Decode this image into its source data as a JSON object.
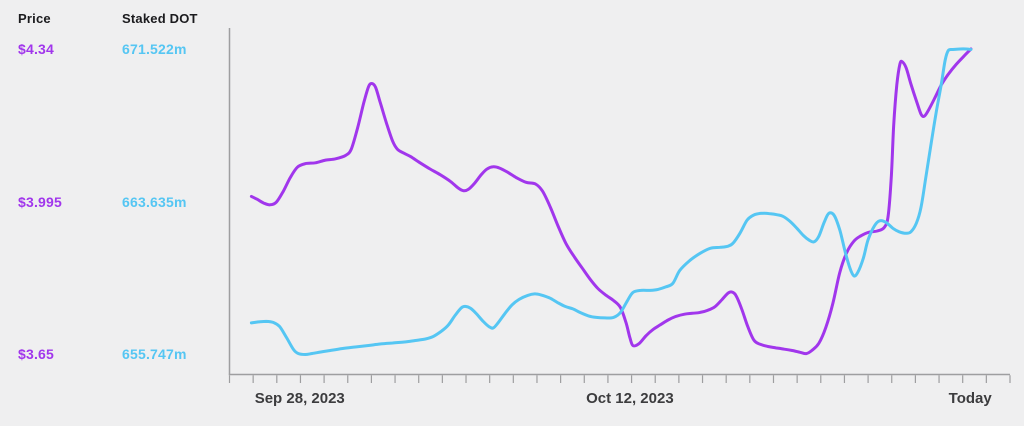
{
  "page": {
    "background": "#efeff0"
  },
  "legend": {
    "columns": [
      {
        "header": "Price",
        "color": "#a136ec",
        "values": [
          "$4.34",
          "$3.995",
          "$3.65"
        ]
      },
      {
        "header": "Staked DOT",
        "color": "#55c6f3",
        "values": [
          "671.522m",
          "663.635m",
          "655.747m"
        ]
      }
    ]
  },
  "chart_data": {
    "type": "line",
    "title": "",
    "xlabel": "",
    "ylabel_left": "Price",
    "ylabel_right": "Staked DOT",
    "grid": false,
    "legend_position": "left",
    "axis_color": "#9e9ea0",
    "tick_label_color": "#3c3c3e",
    "x_axis": {
      "tick_count": 34,
      "labels": [
        {
          "text": "Sep 28, 2023",
          "t": 0.09
        },
        {
          "text": "Oct 12, 2023",
          "t": 0.513
        },
        {
          "text": "Today",
          "t": 0.949
        }
      ]
    },
    "series": [
      {
        "name": "Price",
        "unit": "USD",
        "color": "#a136ec",
        "min": 3.65,
        "mid": 3.995,
        "max": 4.34,
        "axis_labels": [
          "$4.34",
          "$3.995",
          "$3.65"
        ],
        "points": [
          [
            0.028,
            4.007
          ],
          [
            0.035,
            4.001
          ],
          [
            0.044,
            3.992
          ],
          [
            0.052,
            3.988
          ],
          [
            0.06,
            3.994
          ],
          [
            0.069,
            4.019
          ],
          [
            0.078,
            4.05
          ],
          [
            0.087,
            4.073
          ],
          [
            0.097,
            4.081
          ],
          [
            0.11,
            4.083
          ],
          [
            0.123,
            4.089
          ],
          [
            0.136,
            4.092
          ],
          [
            0.149,
            4.1
          ],
          [
            0.156,
            4.114
          ],
          [
            0.164,
            4.161
          ],
          [
            0.172,
            4.218
          ],
          [
            0.178,
            4.254
          ],
          [
            0.182,
            4.262
          ],
          [
            0.187,
            4.254
          ],
          [
            0.193,
            4.22
          ],
          [
            0.201,
            4.173
          ],
          [
            0.209,
            4.132
          ],
          [
            0.215,
            4.114
          ],
          [
            0.223,
            4.105
          ],
          [
            0.232,
            4.097
          ],
          [
            0.245,
            4.082
          ],
          [
            0.257,
            4.069
          ],
          [
            0.27,
            4.056
          ],
          [
            0.283,
            4.041
          ],
          [
            0.293,
            4.026
          ],
          [
            0.3,
            4.02
          ],
          [
            0.306,
            4.023
          ],
          [
            0.314,
            4.037
          ],
          [
            0.323,
            4.057
          ],
          [
            0.33,
            4.069
          ],
          [
            0.338,
            4.074
          ],
          [
            0.346,
            4.071
          ],
          [
            0.356,
            4.062
          ],
          [
            0.367,
            4.05
          ],
          [
            0.38,
            4.039
          ],
          [
            0.392,
            4.035
          ],
          [
            0.401,
            4.019
          ],
          [
            0.411,
            3.983
          ],
          [
            0.421,
            3.94
          ],
          [
            0.431,
            3.901
          ],
          [
            0.442,
            3.87
          ],
          [
            0.452,
            3.845
          ],
          [
            0.462,
            3.82
          ],
          [
            0.472,
            3.799
          ],
          [
            0.483,
            3.783
          ],
          [
            0.492,
            3.772
          ],
          [
            0.501,
            3.756
          ],
          [
            0.508,
            3.722
          ],
          [
            0.513,
            3.688
          ],
          [
            0.517,
            3.67
          ],
          [
            0.525,
            3.675
          ],
          [
            0.534,
            3.693
          ],
          [
            0.543,
            3.707
          ],
          [
            0.552,
            3.717
          ],
          [
            0.562,
            3.728
          ],
          [
            0.572,
            3.736
          ],
          [
            0.583,
            3.741
          ],
          [
            0.593,
            3.743
          ],
          [
            0.603,
            3.745
          ],
          [
            0.613,
            3.75
          ],
          [
            0.622,
            3.758
          ],
          [
            0.631,
            3.774
          ],
          [
            0.639,
            3.789
          ],
          [
            0.644,
            3.791
          ],
          [
            0.649,
            3.783
          ],
          [
            0.656,
            3.754
          ],
          [
            0.664,
            3.713
          ],
          [
            0.672,
            3.682
          ],
          [
            0.68,
            3.673
          ],
          [
            0.69,
            3.668
          ],
          [
            0.7,
            3.665
          ],
          [
            0.711,
            3.662
          ],
          [
            0.721,
            3.659
          ],
          [
            0.731,
            3.655
          ],
          [
            0.739,
            3.652
          ],
          [
            0.746,
            3.659
          ],
          [
            0.755,
            3.675
          ],
          [
            0.764,
            3.711
          ],
          [
            0.773,
            3.765
          ],
          [
            0.782,
            3.836
          ],
          [
            0.791,
            3.881
          ],
          [
            0.8,
            3.906
          ],
          [
            0.809,
            3.918
          ],
          [
            0.819,
            3.926
          ],
          [
            0.83,
            3.929
          ],
          [
            0.839,
            3.937
          ],
          [
            0.844,
            3.964
          ],
          [
            0.848,
            4.055
          ],
          [
            0.851,
            4.168
          ],
          [
            0.855,
            4.259
          ],
          [
            0.859,
            4.306
          ],
          [
            0.862,
            4.311
          ],
          [
            0.867,
            4.297
          ],
          [
            0.873,
            4.261
          ],
          [
            0.881,
            4.218
          ],
          [
            0.886,
            4.193
          ],
          [
            0.89,
            4.188
          ],
          [
            0.895,
            4.2
          ],
          [
            0.903,
            4.227
          ],
          [
            0.912,
            4.259
          ],
          [
            0.921,
            4.283
          ],
          [
            0.931,
            4.305
          ],
          [
            0.941,
            4.324
          ],
          [
            0.95,
            4.34
          ]
        ]
      },
      {
        "name": "Staked DOT",
        "unit": "million DOT",
        "color": "#55c6f3",
        "min": 655.747,
        "mid": 663.635,
        "max": 671.522,
        "axis_labels": [
          "671.522m",
          "663.635m",
          "655.747m"
        ],
        "points": [
          [
            0.028,
            657.377
          ],
          [
            0.037,
            657.429
          ],
          [
            0.047,
            657.454
          ],
          [
            0.056,
            657.403
          ],
          [
            0.064,
            657.196
          ],
          [
            0.073,
            656.627
          ],
          [
            0.082,
            656.006
          ],
          [
            0.088,
            655.799
          ],
          [
            0.097,
            655.747
          ],
          [
            0.106,
            655.799
          ],
          [
            0.117,
            655.877
          ],
          [
            0.129,
            655.954
          ],
          [
            0.145,
            656.058
          ],
          [
            0.161,
            656.135
          ],
          [
            0.178,
            656.213
          ],
          [
            0.193,
            656.291
          ],
          [
            0.209,
            656.342
          ],
          [
            0.224,
            656.394
          ],
          [
            0.238,
            656.472
          ],
          [
            0.251,
            656.549
          ],
          [
            0.261,
            656.679
          ],
          [
            0.271,
            656.937
          ],
          [
            0.28,
            657.248
          ],
          [
            0.289,
            657.765
          ],
          [
            0.297,
            658.153
          ],
          [
            0.302,
            658.23
          ],
          [
            0.309,
            658.127
          ],
          [
            0.316,
            657.868
          ],
          [
            0.325,
            657.454
          ],
          [
            0.333,
            657.17
          ],
          [
            0.338,
            657.118
          ],
          [
            0.344,
            657.377
          ],
          [
            0.353,
            657.868
          ],
          [
            0.362,
            658.308
          ],
          [
            0.371,
            658.592
          ],
          [
            0.382,
            658.799
          ],
          [
            0.391,
            658.877
          ],
          [
            0.399,
            658.825
          ],
          [
            0.41,
            658.67
          ],
          [
            0.42,
            658.437
          ],
          [
            0.43,
            658.23
          ],
          [
            0.44,
            658.101
          ],
          [
            0.449,
            657.92
          ],
          [
            0.46,
            657.739
          ],
          [
            0.47,
            657.661
          ],
          [
            0.481,
            657.636
          ],
          [
            0.492,
            657.661
          ],
          [
            0.501,
            657.92
          ],
          [
            0.51,
            658.541
          ],
          [
            0.517,
            658.954
          ],
          [
            0.527,
            659.058
          ],
          [
            0.539,
            659.058
          ],
          [
            0.549,
            659.11
          ],
          [
            0.559,
            659.239
          ],
          [
            0.568,
            659.42
          ],
          [
            0.577,
            660.092
          ],
          [
            0.59,
            660.609
          ],
          [
            0.603,
            660.971
          ],
          [
            0.616,
            661.23
          ],
          [
            0.629,
            661.281
          ],
          [
            0.638,
            661.333
          ],
          [
            0.645,
            661.488
          ],
          [
            0.654,
            662.005
          ],
          [
            0.663,
            662.678
          ],
          [
            0.671,
            662.936
          ],
          [
            0.677,
            663.014
          ],
          [
            0.685,
            663.04
          ],
          [
            0.693,
            663.014
          ],
          [
            0.702,
            662.962
          ],
          [
            0.709,
            662.885
          ],
          [
            0.718,
            662.626
          ],
          [
            0.727,
            662.264
          ],
          [
            0.735,
            661.902
          ],
          [
            0.743,
            661.643
          ],
          [
            0.749,
            661.566
          ],
          [
            0.755,
            661.85
          ],
          [
            0.762,
            662.574
          ],
          [
            0.768,
            663.04
          ],
          [
            0.775,
            662.91
          ],
          [
            0.782,
            662.16
          ],
          [
            0.789,
            661.023
          ],
          [
            0.795,
            660.196
          ],
          [
            0.8,
            659.808
          ],
          [
            0.805,
            659.989
          ],
          [
            0.812,
            660.713
          ],
          [
            0.818,
            661.643
          ],
          [
            0.826,
            662.368
          ],
          [
            0.833,
            662.652
          ],
          [
            0.841,
            662.575
          ],
          [
            0.85,
            662.264
          ],
          [
            0.858,
            662.084
          ],
          [
            0.867,
            662.006
          ],
          [
            0.873,
            662.084
          ],
          [
            0.88,
            662.523
          ],
          [
            0.886,
            663.35
          ],
          [
            0.892,
            664.85
          ],
          [
            0.899,
            666.661
          ],
          [
            0.905,
            668.16
          ],
          [
            0.912,
            669.712
          ],
          [
            0.917,
            670.953
          ],
          [
            0.921,
            671.444
          ],
          [
            0.927,
            671.496
          ],
          [
            0.936,
            671.522
          ],
          [
            0.944,
            671.522
          ],
          [
            0.95,
            671.496
          ]
        ]
      }
    ]
  }
}
